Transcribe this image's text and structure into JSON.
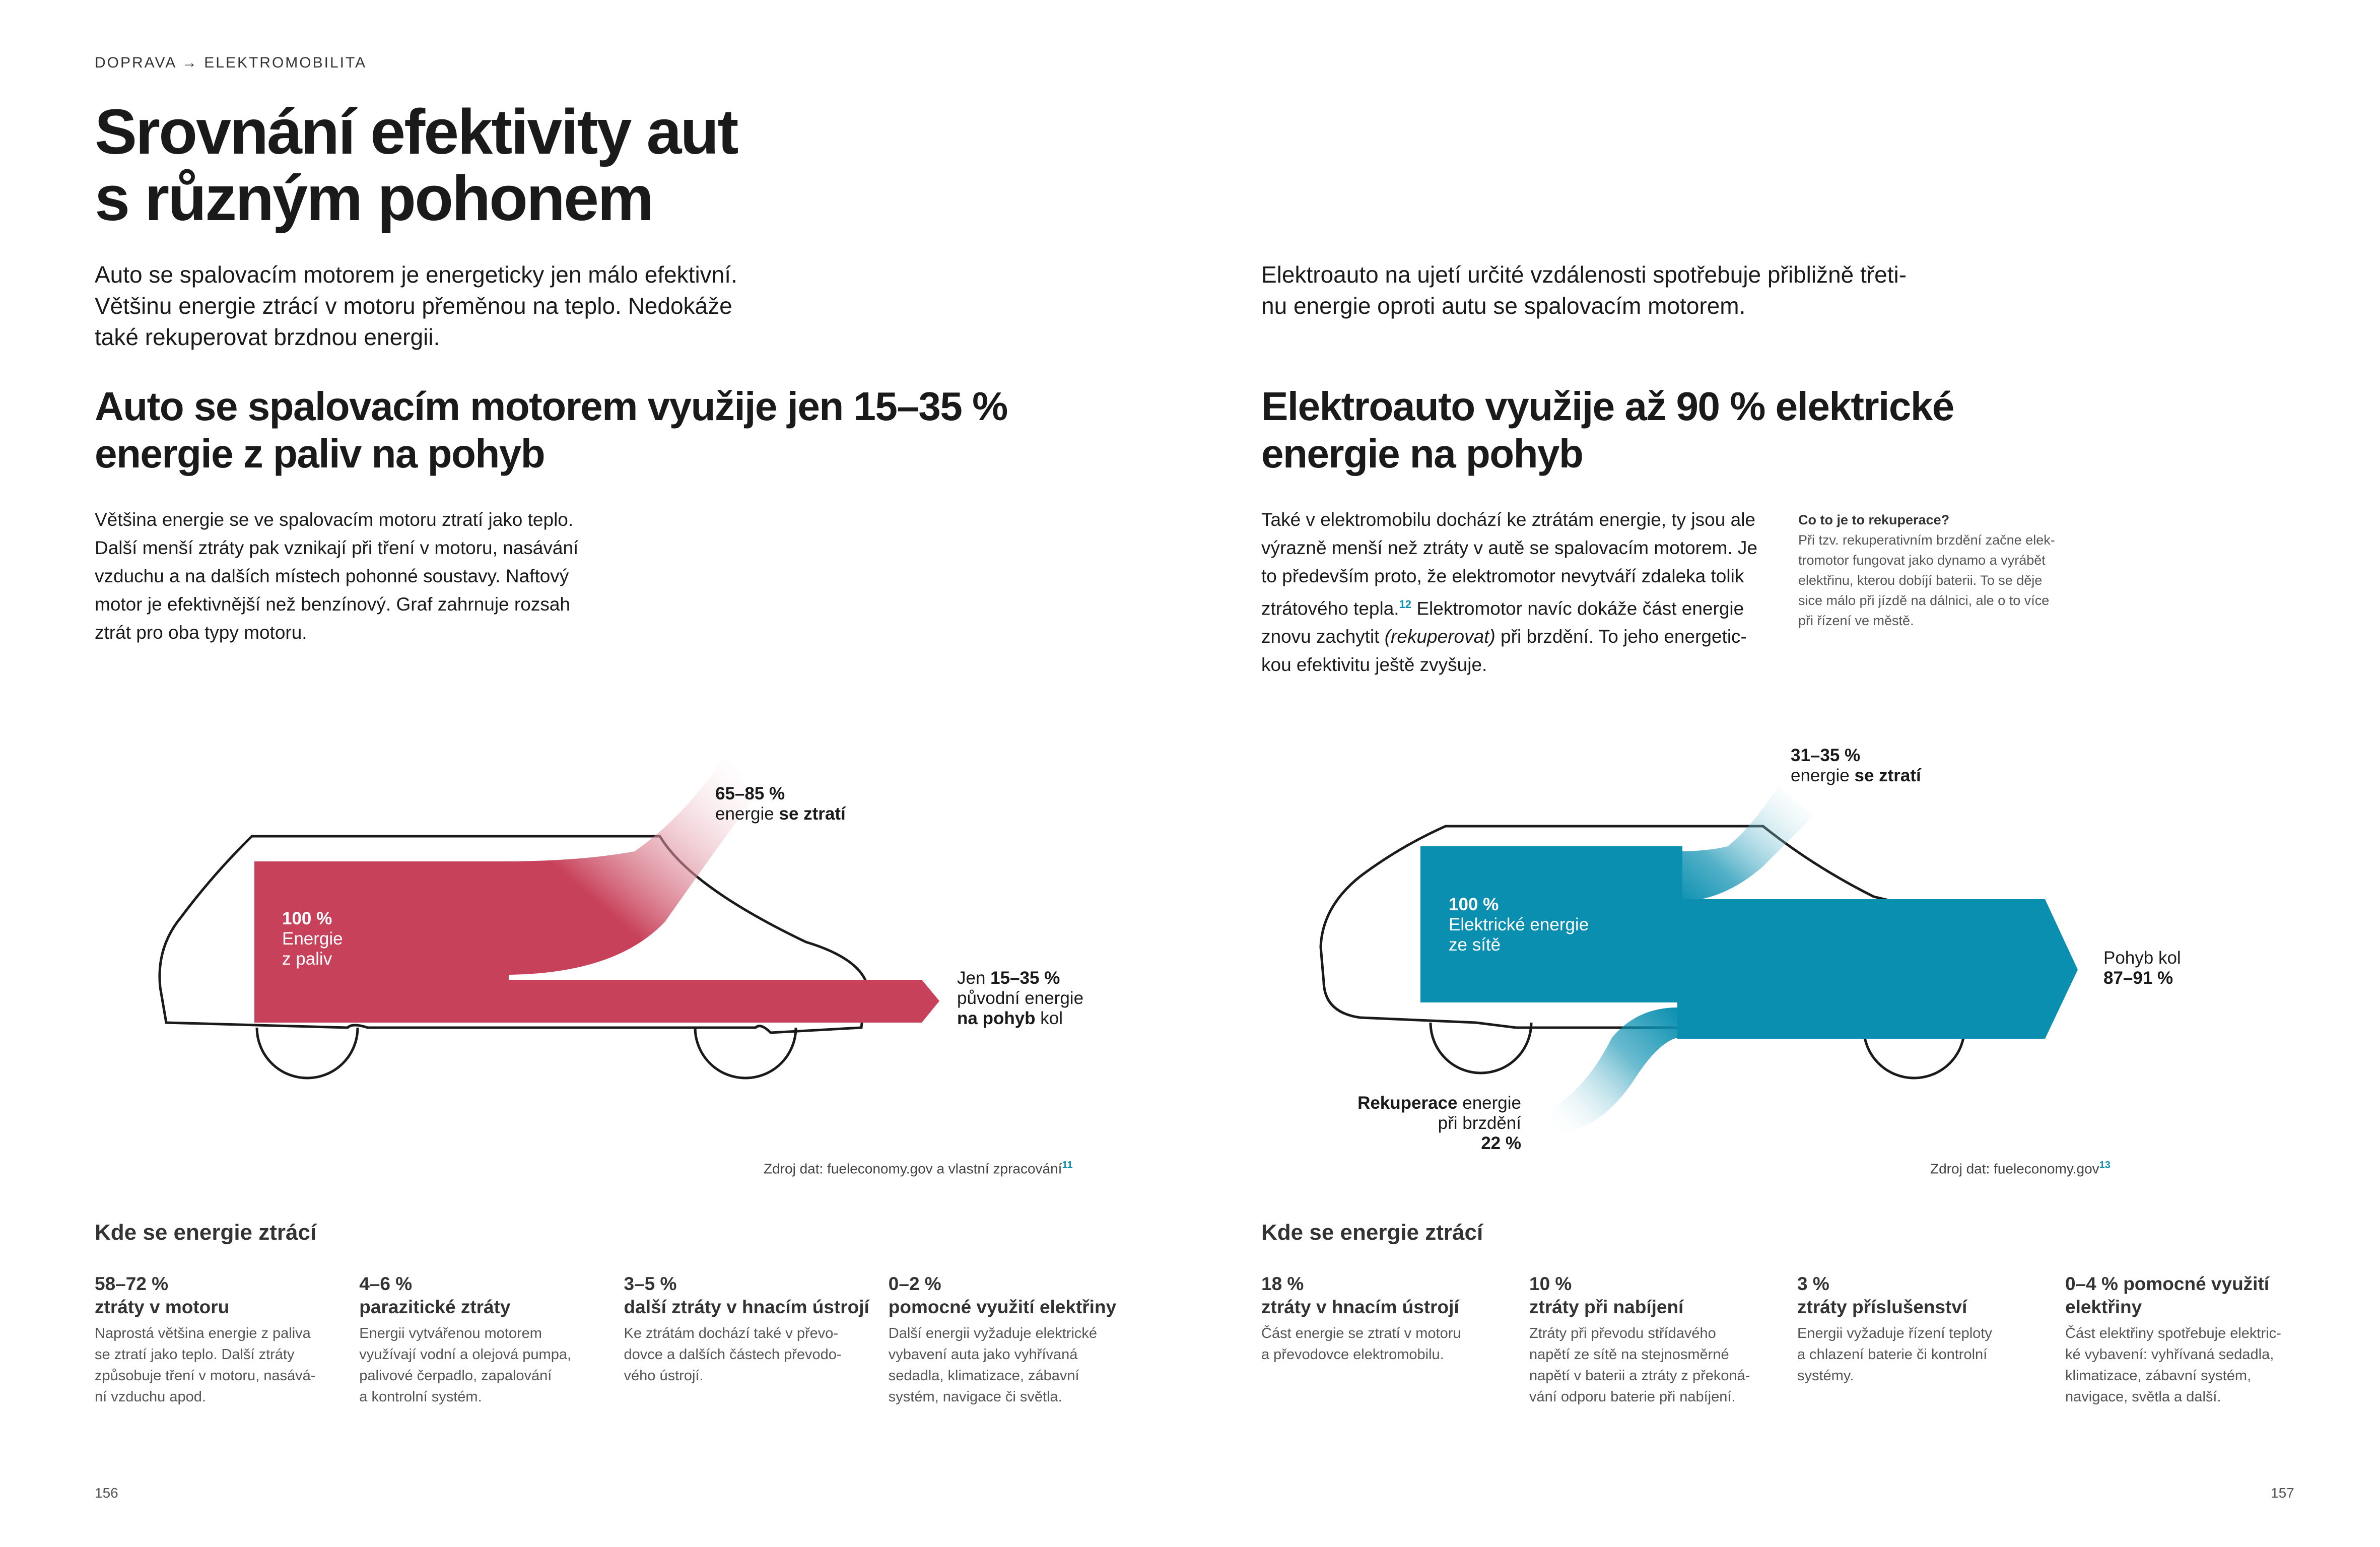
{
  "breadcrumb": "DOPRAVA → ELEKTROMOBILITA",
  "title_line1": "Srovnání efektivity aut",
  "title_line2": "s různým pohonem",
  "left": {
    "intro": [
      "Auto se spalovacím motorem je energeticky jen málo efektivní.",
      "Většinu energie ztrácí v motoru přeměnou na teplo. Nedokáže",
      "také rekuperovat brzdnou energii."
    ],
    "heading": [
      "Auto se spalovacím motorem využije jen 15–35 %",
      "energie z paliv na pohyb"
    ],
    "body": [
      "Většina energie se ve spalovacím motoru ztratí jako teplo.",
      "Další menší ztráty pak vznikají při tření v motoru, nasávání",
      "vzduchu a na dalších místech pohonné soustavy. Naftový",
      "motor je efektivnější než benzínový. Graf zahrnuje rozsah",
      "ztrát pro oba typy motoru."
    ],
    "diagram": {
      "input_pct": "100 %",
      "input_label": [
        "Energie",
        "z paliv"
      ],
      "loss_pct": "65–85 %",
      "loss_label_pre": "energie ",
      "loss_label_bold": "se ztratí",
      "out_pre": "Jen ",
      "out_pct": "15–35 %",
      "out_line2": "původní energie",
      "out_line3_bold": "na pohyb",
      "out_line3_post": " kol",
      "color": "#c8415a"
    },
    "source": "Zdroj dat: fueleconomy.gov a vlastní zpracování",
    "source_ref": "11",
    "section_title": "Kde se energie ztrácí",
    "stats": [
      {
        "value": "58–72 %",
        "title": "ztráty v motoru",
        "desc": [
          "Naprostá většina energie z paliva",
          "se ztratí jako teplo. Další ztráty",
          "způsobuje tření v motoru, nasává-",
          "ní vzduchu apod."
        ]
      },
      {
        "value": "4–6 %",
        "title": "parazitické ztráty",
        "desc": [
          "Energii vytvářenou motorem",
          "využívají vodní a olejová pumpa,",
          "palivové čerpadlo, zapalování",
          "a kontrolní systém."
        ]
      },
      {
        "value": "3–5 %",
        "title": "další ztráty v hnacím ústrojí",
        "desc": [
          "Ke ztrátám dochází také v převo-",
          "dovce a dalších částech převodo-",
          "vého ústrojí."
        ]
      },
      {
        "value": "0–2 %",
        "title": "pomocné využití elektřiny",
        "desc": [
          "Další energii vyžaduje elektrické",
          "vybavení auta jako vyhřívaná",
          "sedadla, klimatizace, zábavní",
          "systém, navigace či světla."
        ]
      }
    ],
    "page_number": "156"
  },
  "right": {
    "intro": [
      "Elektroauto na ujetí určité vzdálenosti spotřebuje přibližně třeti-",
      "nu energie oproti autu se spalovacím motorem."
    ],
    "heading": [
      "Elektroauto využije až 90 % elektrické",
      "energie na pohyb"
    ],
    "body": [
      "Také v elektromobilu dochází ke ztrátám energie, ty jsou ale",
      "výrazně menší než ztráty v autě se spalovacím motorem. Je",
      "to především proto, že elektromotor nevytváří zdaleka tolik"
    ],
    "body_line4_pre": "ztrátového tepla.",
    "body_line4_ref": "12",
    "body_line4_post": " Elektromotor navíc dokáže část energie",
    "body_line5_pre": "znovu zachytit ",
    "body_line5_italic": "(rekuperovat)",
    "body_line5_post": " při brzdění. To jeho energetic-",
    "body_line6": "kou efektivitu ještě zvyšuje.",
    "aside_title": "Co to je to rekuperace?",
    "aside": [
      "Při tzv. rekuperativním brzdění začne elek-",
      "tromotor fungovat jako dynamo a vyrábět",
      "elektřinu, kterou dobíjí baterii. To se děje",
      "sice málo při jízdě na dálnici, ale o to více",
      "při řízení ve městě."
    ],
    "diagram": {
      "loss_pct": "31–35 %",
      "loss_label_pre": "energie ",
      "loss_label_bold": "se ztratí",
      "input_pct": "100 %",
      "input_label": [
        "Elektrické energie",
        "ze sítě"
      ],
      "out_label": "Pohyb kol",
      "out_pct": "87–91 %",
      "recup_bold": "Rekuperace",
      "recup_post": " energie",
      "recup_line2": "při brzdění",
      "recup_pct": "22 %",
      "color": "#0a8fb0"
    },
    "source": "Zdroj dat: fueleconomy.gov",
    "source_ref": "13",
    "section_title": "Kde se energie ztrácí",
    "stats": [
      {
        "value": "18 %",
        "title": "ztráty v hnacím ústrojí",
        "desc": [
          "Část energie se ztratí v motoru",
          "a převodovce elektromobilu."
        ]
      },
      {
        "value": "10 %",
        "title": "ztráty při nabíjení",
        "desc": [
          "Ztráty při převodu střídavého",
          "napětí ze sítě na stejnosměrné",
          "napětí v baterii a ztráty z překoná-",
          "vání odporu baterie při nabíjení."
        ]
      },
      {
        "value": "3 %",
        "title": "ztráty příslušenství",
        "desc": [
          "Energii vyžaduje řízení teploty",
          "a chlazení baterie či kontrolní",
          "systémy."
        ]
      },
      {
        "value": "0–4 % pomocné využití",
        "title": "elektřiny",
        "desc": [
          "Část elektřiny spotřebuje elektric-",
          "ké vybavení: vyhřívaná sedadla,",
          "klimatizace, zábavní systém,",
          "navigace, světla a další."
        ]
      }
    ],
    "page_number": "157"
  }
}
